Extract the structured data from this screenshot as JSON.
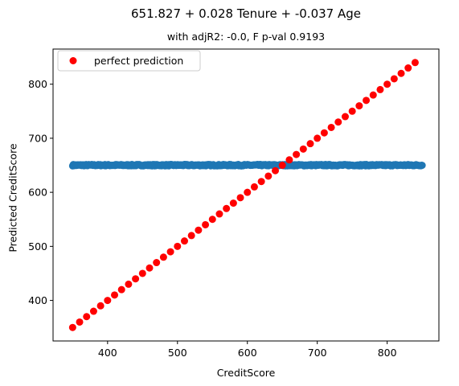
{
  "chart_data": {
    "type": "scatter",
    "title": "651.827 + 0.028 Tenure + -0.037 Age",
    "subtitle": "with adjR2: -0.0, F p-val 0.9193",
    "xlabel": "CreditScore",
    "ylabel": "Predicted CreditScore",
    "xlim": [
      322,
      874
    ],
    "ylim": [
      325,
      865
    ],
    "xticks": [
      400,
      500,
      600,
      700,
      800
    ],
    "yticks": [
      400,
      500,
      600,
      700,
      800
    ],
    "legend": {
      "position": "top-left",
      "entries": [
        "perfect prediction"
      ]
    },
    "grid": false,
    "series": [
      {
        "name": "",
        "color": "#1f77b4",
        "kind": "band",
        "x_range": [
          350,
          850
        ],
        "y_center": 650.2,
        "y_spread": 1.3
      },
      {
        "name": "perfect prediction",
        "color": "#ff0000",
        "kind": "points",
        "x": [
          350,
          360,
          370,
          380,
          390,
          400,
          410,
          420,
          430,
          440,
          450,
          460,
          470,
          480,
          490,
          500,
          510,
          520,
          530,
          540,
          550,
          560,
          570,
          580,
          590,
          600,
          610,
          620,
          630,
          640,
          650,
          660,
          670,
          680,
          690,
          700,
          710,
          720,
          730,
          740,
          750,
          760,
          770,
          780,
          790,
          800,
          810,
          820,
          830,
          840
        ],
        "y": [
          350,
          360,
          370,
          380,
          390,
          400,
          410,
          420,
          430,
          440,
          450,
          460,
          470,
          480,
          490,
          500,
          510,
          520,
          530,
          540,
          550,
          560,
          570,
          580,
          590,
          600,
          610,
          620,
          630,
          640,
          650,
          660,
          670,
          680,
          690,
          700,
          710,
          720,
          730,
          740,
          750,
          760,
          770,
          780,
          790,
          800,
          810,
          820,
          830,
          840
        ]
      }
    ]
  }
}
